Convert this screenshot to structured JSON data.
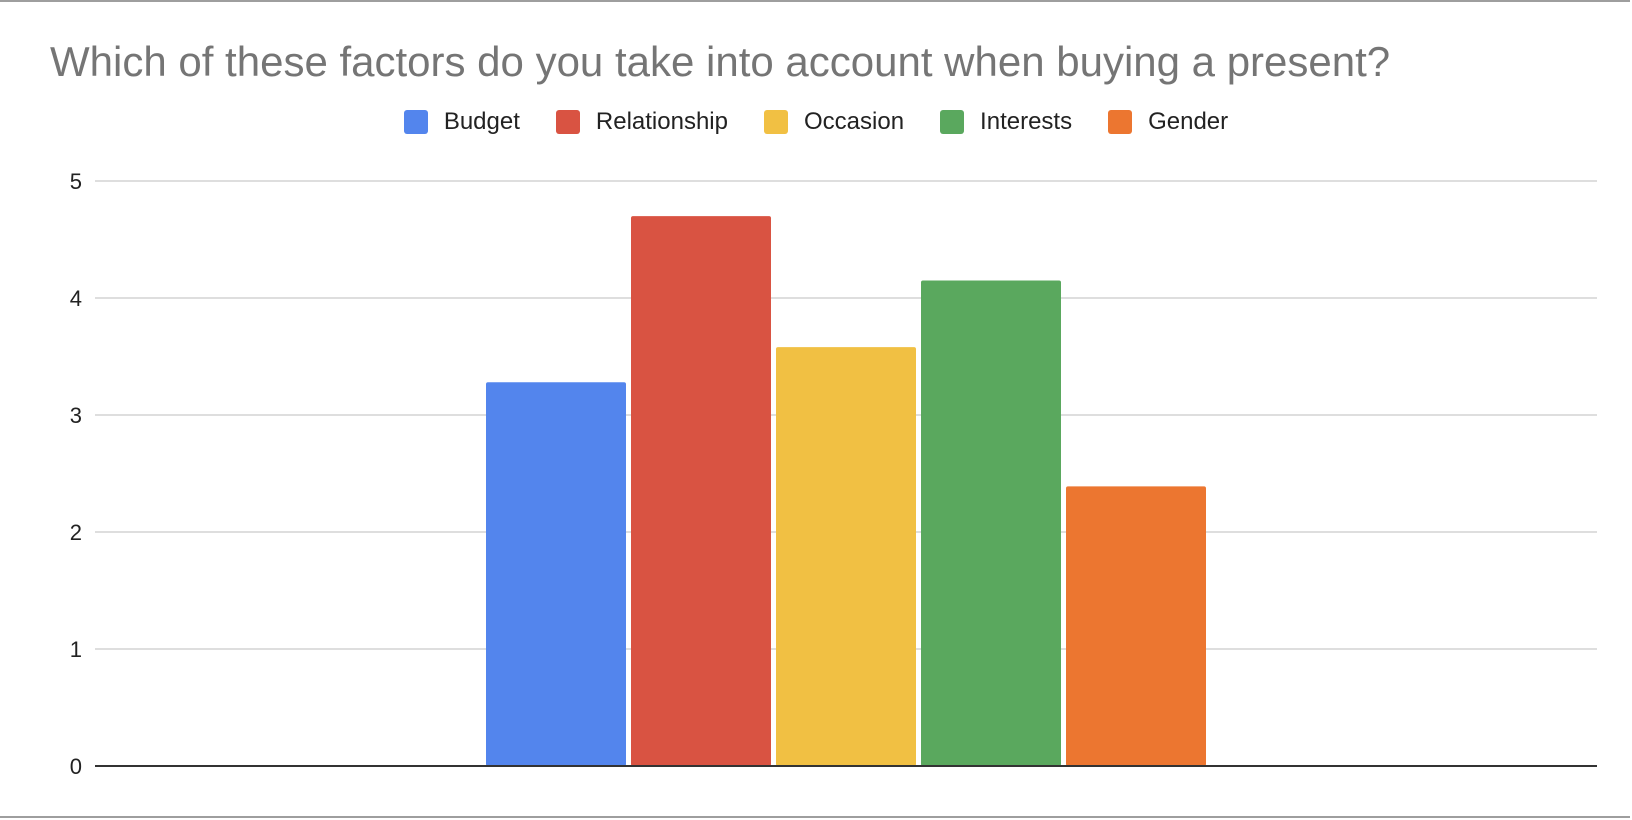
{
  "chart_data": {
    "type": "bar",
    "title": "Which of these factors do you take into account when buying a present?",
    "xlabel": "",
    "ylabel": "",
    "ylim": [
      0,
      5
    ],
    "yticks": [
      "0",
      "1",
      "2",
      "3",
      "4",
      "5"
    ],
    "grid": true,
    "legend_placement": "top",
    "series": [
      {
        "name": "Budget",
        "values": [
          3.28
        ],
        "color": "#5385ed"
      },
      {
        "name": "Relationship",
        "values": [
          4.7
        ],
        "color": "#d95342"
      },
      {
        "name": "Occasion",
        "values": [
          3.58
        ],
        "color": "#f1c043"
      },
      {
        "name": "Interests",
        "values": [
          4.15
        ],
        "color": "#5aa85e"
      },
      {
        "name": "Gender",
        "values": [
          2.39
        ],
        "color": "#ec7630"
      }
    ]
  }
}
